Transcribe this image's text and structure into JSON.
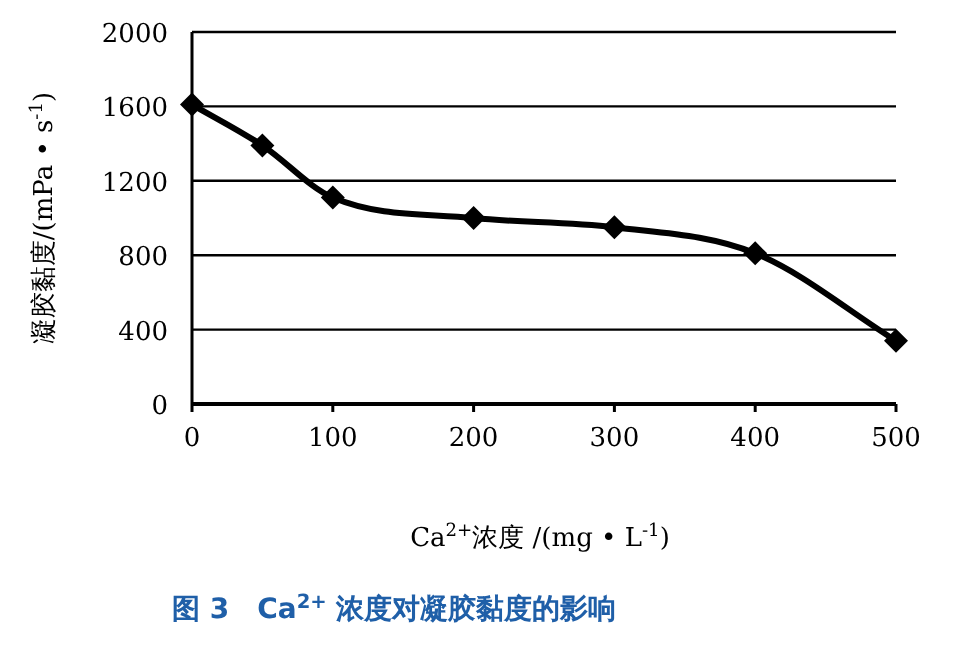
{
  "chart_data": {
    "type": "line",
    "title": "图 3　Ca$^{2+}$ 浓度对凝胶黏度的影响",
    "xlabel": "Ca$^{2+}$浓度 /(mg • L$^{-1}$)",
    "ylabel": "凝胶黏度/(mPa • s$^{-1}$)",
    "x": [
      0,
      50,
      100,
      200,
      300,
      400,
      500
    ],
    "series": [
      {
        "color": "#000000",
        "values": [
          1610,
          1390,
          1110,
          1000,
          950,
          810,
          340
        ]
      }
    ],
    "xlim": [
      0,
      500
    ],
    "xticks": [
      0,
      100,
      200,
      300,
      400,
      500
    ],
    "ylim": [
      0,
      2000
    ],
    "yticks": [
      0,
      400,
      800,
      1200,
      1600,
      2000
    ],
    "grid": "y",
    "marker": "diamond",
    "line_style": "solid"
  }
}
